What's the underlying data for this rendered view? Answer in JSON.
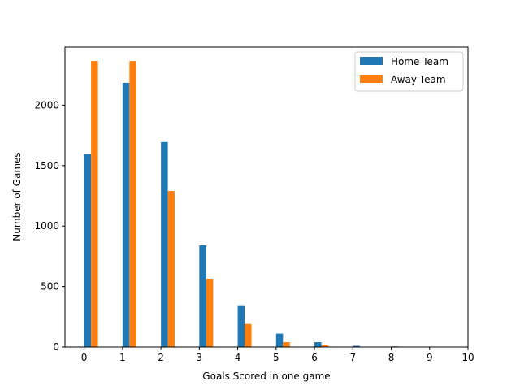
{
  "chart_data": {
    "type": "bar",
    "xlabel": "Goals Scored in one game",
    "ylabel": "Number of Games",
    "xlim": [
      -0.5,
      10
    ],
    "ylim": [
      0,
      2480
    ],
    "xticks": [
      0,
      1,
      2,
      3,
      4,
      5,
      6,
      7,
      8,
      9,
      10
    ],
    "yticks": [
      0,
      500,
      1000,
      1500,
      2000
    ],
    "grid": false,
    "legend_position": "top-right",
    "series": [
      {
        "name": "Home Team",
        "color": "#1f77b4",
        "x": [
          0,
          1,
          2,
          3,
          4,
          5,
          6,
          7,
          8
        ],
        "values": [
          1595,
          2185,
          1695,
          840,
          345,
          110,
          40,
          10,
          5
        ]
      },
      {
        "name": "Away Team",
        "color": "#ff7f0e",
        "x": [
          0,
          1,
          2,
          3,
          4,
          5,
          6
        ],
        "values": [
          2365,
          2365,
          1290,
          565,
          190,
          40,
          15
        ]
      }
    ]
  }
}
